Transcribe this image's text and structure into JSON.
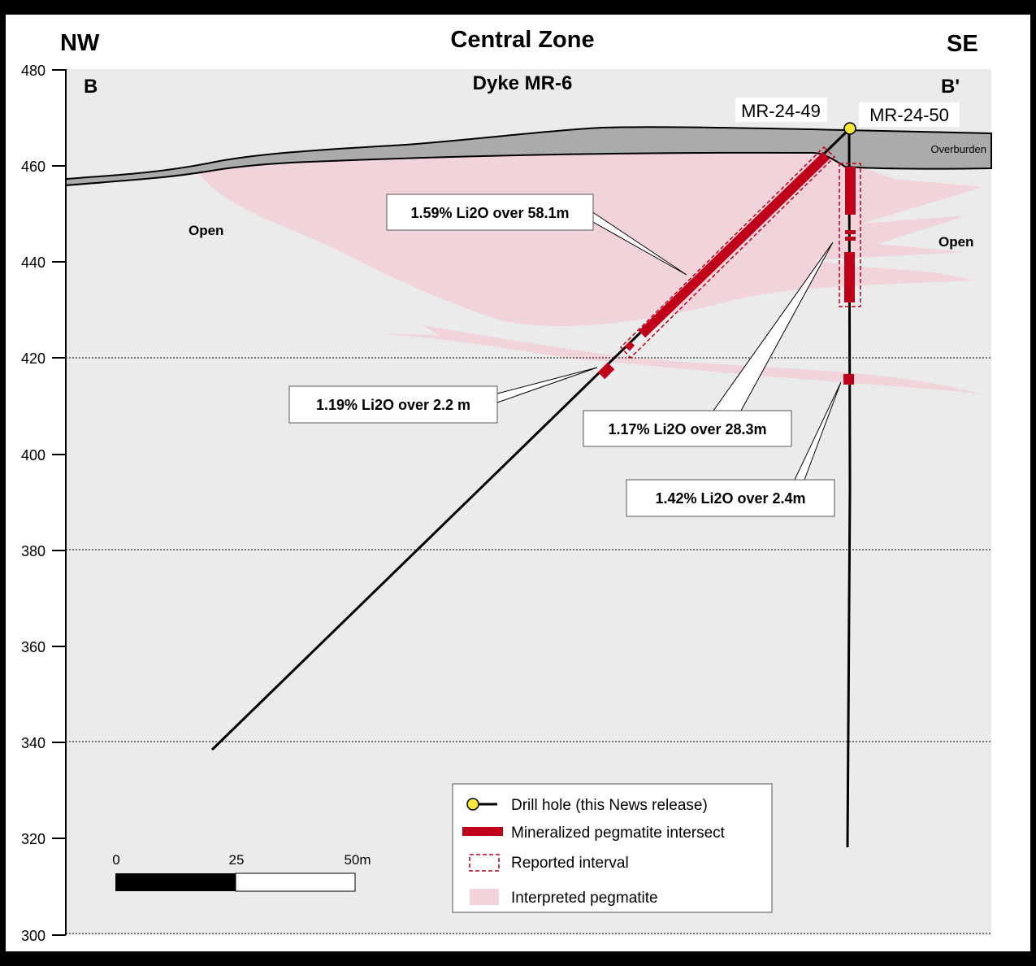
{
  "title": "Central Zone",
  "subtitle": "Dyke MR-6",
  "direction_left": "NW",
  "direction_right": "SE",
  "section_start": "B",
  "section_end": "B'",
  "y_axis": {
    "ticks": [
      "480",
      "460",
      "440",
      "420",
      "400",
      "380",
      "360",
      "340",
      "320",
      "300"
    ],
    "range": [
      300,
      480
    ]
  },
  "labels": {
    "overburden": "Overburden",
    "open_left": "Open",
    "open_right": "Open"
  },
  "drill_holes": [
    {
      "name": "MR-24-49"
    },
    {
      "name": "MR-24-50"
    }
  ],
  "callouts": [
    "1.59% Li2O over 58.1m",
    "1.19% Li2O over 2.2 m",
    "1.17% Li2O over 28.3m",
    "1.42% Li2O over 2.4m"
  ],
  "scale_bar": {
    "labels": [
      "0",
      "25",
      "50m"
    ]
  },
  "legend": [
    "Drill hole (this News release)",
    "Mineralized pegmatite intersect",
    "Reported interval",
    "Interpreted pegmatite"
  ],
  "colors": {
    "pegmatite": "#f0d4da",
    "intersect": "#c0001a",
    "overburden": "#ababab",
    "collar": "#f5e83a",
    "background": "#ebebeb"
  }
}
